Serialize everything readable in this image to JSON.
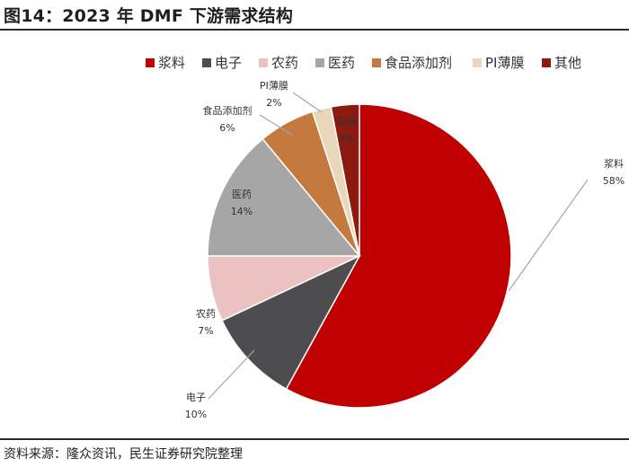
{
  "figure": {
    "title": "图14：2023 年 DMF 下游需求结构",
    "source": "资料来源：隆众资讯，民生证券研究院整理"
  },
  "chart_data": {
    "type": "pie",
    "title": "",
    "legend_position": "top-right",
    "slices": [
      {
        "name": "浆料",
        "value": 58,
        "label": "58%",
        "color": "#C00000"
      },
      {
        "name": "电子",
        "value": 10,
        "label": "10%",
        "color": "#4D4D4F"
      },
      {
        "name": "农药",
        "value": 7,
        "label": "7%",
        "color": "#EBC1C1"
      },
      {
        "name": "医药",
        "value": 14,
        "label": "14%",
        "color": "#A6A6A6"
      },
      {
        "name": "食品添加剂",
        "value": 6,
        "label": "6%",
        "color": "#C47A3E"
      },
      {
        "name": "PI薄膜",
        "value": 2,
        "label": "2%",
        "color": "#E8D7B8"
      },
      {
        "name": "其他",
        "value": 3,
        "label": "3%",
        "color": "#8C1A0F"
      }
    ]
  }
}
